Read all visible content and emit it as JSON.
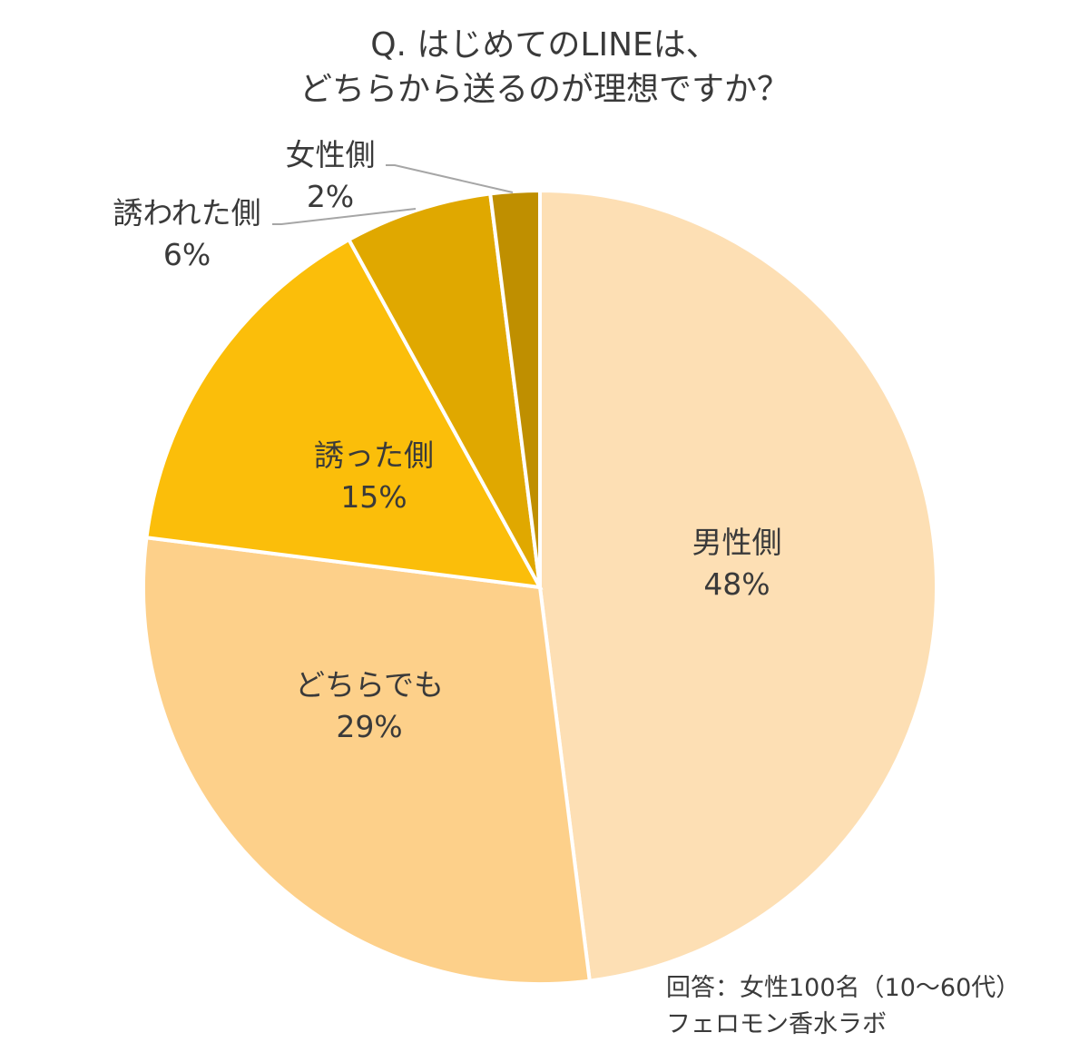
{
  "chart_data": {
    "type": "pie",
    "title": "Q. はじめてのLINEは、どちらから送るのが理想ですか？",
    "title_lines": [
      "Q. はじめてのLINEは、",
      "どちらから送るのが理想ですか？"
    ],
    "categories": [
      "男性側",
      "どちらでも",
      "誘った側",
      "誘われた側",
      "女性側"
    ],
    "values": [
      48,
      29,
      15,
      6,
      2
    ],
    "labels": [
      "48%",
      "29%",
      "15%",
      "6%",
      "2%"
    ],
    "colors": [
      "#FDDFB4",
      "#FDD08A",
      "#FBBE0A",
      "#E0A800",
      "#BF8F00"
    ],
    "start_angle": "top",
    "direction": "clockwise",
    "annotations": [
      "回答：女性100名（10～60代）",
      "フェロモン香水ラボ"
    ]
  },
  "notes": {
    "line1": "回答：女性100名（10～60代）",
    "line2": "フェロモン香水ラボ"
  }
}
